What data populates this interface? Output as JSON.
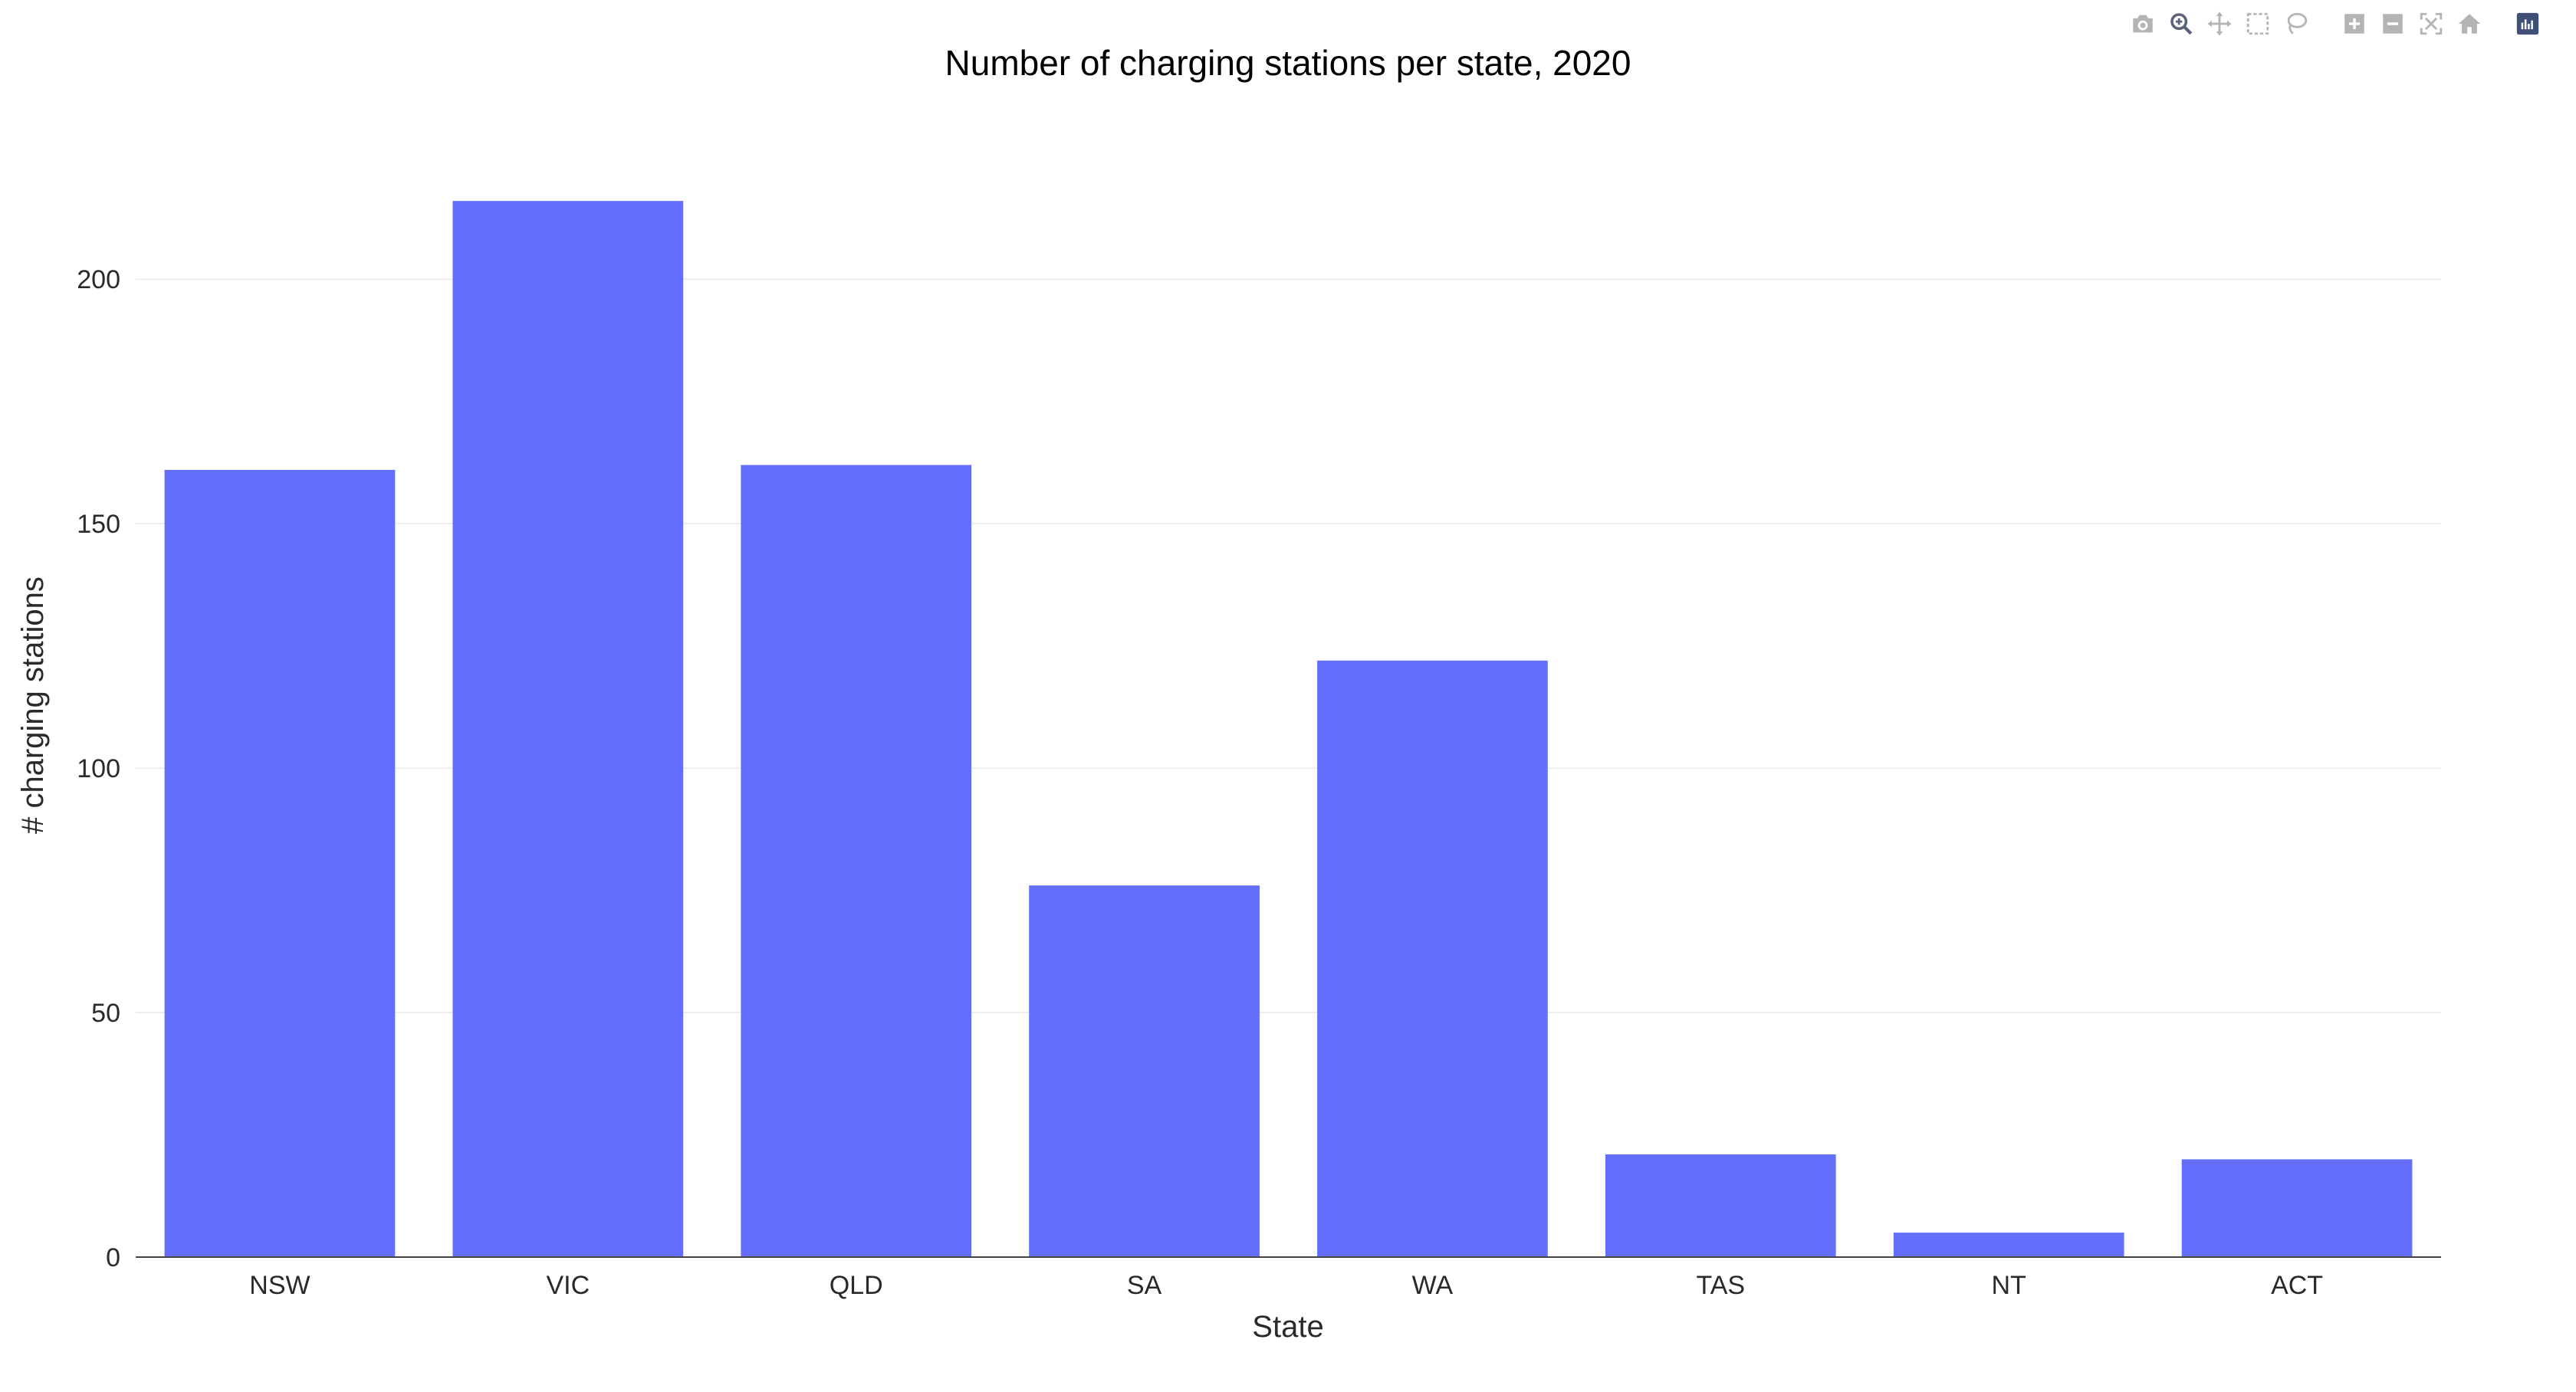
{
  "toolbar": {
    "icons": [
      "camera-icon",
      "zoom-icon",
      "pan-icon",
      "box-select-icon",
      "lasso-select-icon",
      "zoom-in-icon",
      "zoom-out-icon",
      "autoscale-icon",
      "reset-axes-icon",
      "plotly-logo-icon"
    ],
    "icon_color": "#b4b4b4",
    "logo_color": "#3f4f75"
  },
  "chart_data": {
    "type": "bar",
    "title": "Number of charging stations per state, 2020",
    "xlabel": "State",
    "ylabel": "# charging stations",
    "categories": [
      "NSW",
      "VIC",
      "QLD",
      "SA",
      "WA",
      "TAS",
      "NT",
      "ACT"
    ],
    "values": [
      161,
      216,
      162,
      76,
      122,
      21,
      5,
      20
    ],
    "ylim": [
      0,
      227
    ],
    "yticks": [
      0,
      50,
      100,
      150,
      200
    ],
    "ytick_labels": [
      "0",
      "50",
      "100",
      "150",
      "200"
    ],
    "grid": true,
    "bar_color": "#636efa",
    "grid_color": "#eeeeee"
  }
}
